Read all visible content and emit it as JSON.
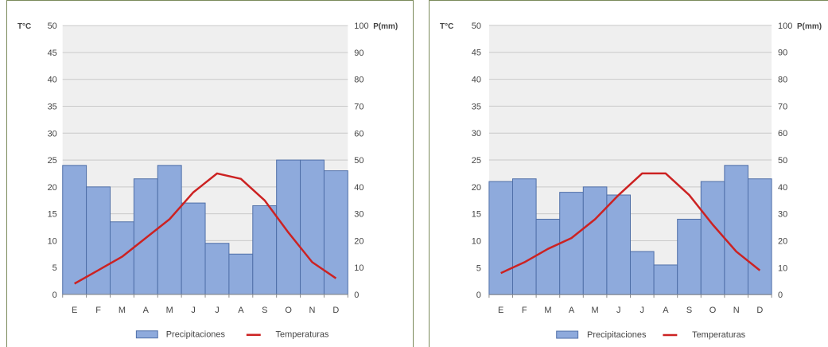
{
  "charts": {
    "colors": {
      "plot_background": "#efefef",
      "gridline": "#c9c9c9",
      "bar_fill": "#8eaadc",
      "bar_stroke": "#4f6fa8",
      "line": "#cc2222",
      "text": "#444444",
      "panel_border": "#7a8a5a"
    }
  },
  "chart_data": [
    {
      "type": "bar",
      "categories": [
        "E",
        "F",
        "M",
        "A",
        "M",
        "J",
        "J",
        "A",
        "S",
        "O",
        "N",
        "D"
      ],
      "left_axis_label": "T°C",
      "right_axis_label": "P(mm)",
      "left_axis_ticks": [
        "0",
        "5",
        "10",
        "15",
        "20",
        "25",
        "30",
        "35",
        "40",
        "45",
        "50"
      ],
      "right_axis_ticks": [
        "0",
        "10",
        "20",
        "30",
        "40",
        "50",
        "60",
        "70",
        "80",
        "90",
        "100"
      ],
      "ylim_left": [
        0,
        50
      ],
      "ylim_right": [
        0,
        100
      ],
      "grid": true,
      "legend_position": "bottom",
      "series": [
        {
          "name": "Precipitaciones",
          "type": "bar",
          "axis": "right",
          "values": [
            48,
            40,
            27,
            43,
            48,
            34,
            19,
            15,
            33,
            50,
            50,
            46
          ]
        },
        {
          "name": "Temperaturas",
          "type": "line",
          "axis": "left",
          "values": [
            2,
            4.5,
            7,
            10.5,
            14,
            19,
            22.5,
            21.5,
            17.5,
            11.5,
            6,
            3
          ]
        }
      ]
    },
    {
      "type": "bar",
      "categories": [
        "E",
        "F",
        "M",
        "A",
        "M",
        "J",
        "J",
        "A",
        "S",
        "O",
        "N",
        "D"
      ],
      "left_axis_label": "T°C",
      "right_axis_label": "P(mm)",
      "left_axis_ticks": [
        "0",
        "5",
        "10",
        "15",
        "20",
        "25",
        "30",
        "35",
        "40",
        "45",
        "50"
      ],
      "right_axis_ticks": [
        "0",
        "10",
        "20",
        "30",
        "40",
        "50",
        "60",
        "70",
        "80",
        "90",
        "100"
      ],
      "ylim_left": [
        0,
        50
      ],
      "ylim_right": [
        0,
        100
      ],
      "grid": true,
      "legend_position": "bottom",
      "series": [
        {
          "name": "Precipitaciones",
          "type": "bar",
          "axis": "right",
          "values": [
            42,
            43,
            28,
            38,
            40,
            37,
            16,
            11,
            28,
            42,
            48,
            43
          ]
        },
        {
          "name": "Temperaturas",
          "type": "line",
          "axis": "left",
          "values": [
            4,
            6,
            8.5,
            10.5,
            14,
            18.5,
            22.5,
            22.5,
            18.5,
            13,
            8,
            4.5
          ]
        }
      ]
    }
  ]
}
